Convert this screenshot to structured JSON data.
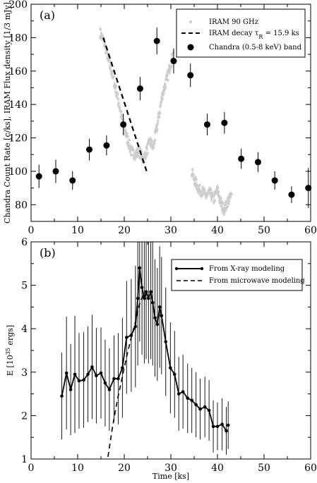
{
  "chart_data": [
    {
      "type": "scatter",
      "panel_label": "(a)",
      "xlabel": "",
      "ylabel": "Chandra Count Rate [c/ks], IRAM Flux density [1/3 mJy]",
      "xlim": [
        0,
        60
      ],
      "ylim": [
        70,
        200
      ],
      "x_ticks": [
        0,
        10,
        20,
        30,
        40,
        50,
        60
      ],
      "y_ticks": [
        80,
        100,
        120,
        140,
        160,
        180,
        200
      ],
      "grid": false,
      "legend_position": "top-right",
      "legend": [
        {
          "label": "IRAM 90 GHz",
          "marker": "small-gray-dot"
        },
        {
          "label": "IRAM decay τ",
          "sub": "R",
          "suffix": " = 15.9 ks",
          "marker": "dashed-line"
        },
        {
          "label": "Chandra (0.5-8 keV) band",
          "marker": "black-circle"
        }
      ],
      "series": [
        {
          "name": "Chandra (0.5-8 keV) band",
          "color": "#000000",
          "x": [
            1.7,
            5.3,
            8.9,
            12.5,
            16.2,
            19.8,
            23.4,
            27.0,
            30.6,
            34.2,
            37.8,
            41.5,
            45.1,
            48.7,
            52.3,
            55.9,
            59.5
          ],
          "y": [
            97,
            100,
            94.5,
            113,
            115.5,
            128,
            149.5,
            178,
            166,
            157.5,
            128,
            129,
            107.5,
            105.5,
            94.5,
            86,
            90
          ],
          "yerr": [
            7,
            7,
            5.5,
            6.5,
            6,
            6.5,
            7,
            8,
            7.5,
            7,
            6.5,
            6.5,
            6,
            6,
            5.5,
            5,
            12
          ]
        },
        {
          "name": "IRAM 90 GHz",
          "color": "#cccccc",
          "segments": [
            {
              "x_start": 14.8,
              "x_end": 27.0,
              "x": [
                14.8,
                15.6,
                16.5,
                17.5,
                18.6,
                19.6,
                20.6,
                21.5,
                22.4,
                23.3,
                24.0,
                24.8,
                25.5,
                26.2,
                27.0
              ],
              "y": [
                183,
                178,
                168,
                157,
                144,
                130,
                120,
                112,
                110,
                112,
                107,
                112,
                118,
                114,
                126
              ]
            },
            {
              "x_start": 27.0,
              "x_end": 30.5,
              "x": [
                27.0,
                27.6,
                28.2,
                28.8,
                29.4,
                30.0,
                30.5
              ],
              "y": [
                126,
                136,
                146,
                152,
                158,
                165,
                170
              ]
            },
            {
              "x_start": 34.5,
              "x_end": 43.0,
              "x": [
                34.5,
                35.2,
                36.0,
                36.8,
                37.6,
                38.4,
                39.2,
                40.0,
                40.8,
                41.5,
                42.2,
                43.0
              ],
              "y": [
                99,
                94,
                89,
                88,
                85,
                87,
                83,
                89,
                80,
                77,
                82,
                85
              ]
            }
          ]
        },
        {
          "name": "IRAM decay",
          "style": "dashed",
          "x": [
            15.5,
            24.8
          ],
          "y": [
            180,
            100
          ]
        }
      ]
    },
    {
      "type": "line",
      "panel_label": "(b)",
      "xlabel": "Time [ks]",
      "ylabel": "E [10",
      "ylabel_sup": "35",
      "ylabel_suffix": " ergs]",
      "xlim": [
        0,
        60
      ],
      "ylim": [
        1,
        6
      ],
      "x_ticks": [
        0,
        10,
        20,
        30,
        40,
        50,
        60
      ],
      "y_ticks": [
        1,
        2,
        3,
        4,
        5,
        6
      ],
      "grid": false,
      "legend_position": "top-right",
      "legend": [
        {
          "label": "From X-ray modeling",
          "marker": "solid-line-dots"
        },
        {
          "label": "From microwave modeling",
          "marker": "dashed-line"
        }
      ],
      "series": [
        {
          "name": "From X-ray modeling",
          "color": "#000000",
          "x": [
            6.6,
            7.6,
            8.5,
            9.4,
            10.3,
            11.3,
            12.2,
            13.1,
            14.0,
            15.0,
            15.9,
            16.8,
            17.8,
            18.7,
            19.6,
            20.5,
            21.5,
            22.4,
            22.9,
            23.3,
            23.8,
            24.3,
            24.7,
            25.2,
            25.7,
            26.1,
            26.6,
            27.1,
            27.6,
            28.0,
            28.9,
            29.9,
            30.8,
            31.7,
            32.6,
            33.6,
            34.5,
            35.4,
            36.3,
            37.3,
            38.2,
            39.1,
            40.0,
            41.0,
            41.9
          ],
          "y": [
            2.45,
            2.98,
            2.6,
            2.95,
            2.8,
            2.82,
            2.95,
            3.12,
            2.92,
            2.98,
            2.75,
            2.6,
            2.85,
            2.85,
            3.1,
            3.8,
            3.85,
            4.05,
            4.7,
            5.4,
            4.95,
            4.7,
            4.85,
            4.7,
            4.85,
            4.6,
            4.25,
            4.1,
            4.5,
            4.3,
            3.7,
            3.1,
            2.95,
            2.5,
            2.55,
            2.4,
            2.35,
            2.25,
            2.15,
            2.2,
            2.12,
            1.75,
            1.75,
            1.8,
            1.65
          ],
          "yerr": [
            1.0,
            1.3,
            1.05,
            1.35,
            1.1,
            1.1,
            1.1,
            1.2,
            1.1,
            1.05,
            1.0,
            0.95,
            1.0,
            1.05,
            1.15,
            1.3,
            1.3,
            1.4,
            1.55,
            1.7,
            1.55,
            1.5,
            1.55,
            1.5,
            1.55,
            1.45,
            1.35,
            1.3,
            1.4,
            1.35,
            1.25,
            1.05,
            1.0,
            0.85,
            0.85,
            0.8,
            0.75,
            0.75,
            0.7,
            0.7,
            0.7,
            0.6,
            0.55,
            0.6,
            0.55
          ]
        },
        {
          "name": "From microwave modeling",
          "style": "dashed",
          "color": "#000000",
          "x": [
            16.5,
            17.5,
            18.5,
            19.5,
            20.5,
            21.5,
            22.5,
            23.0,
            23.5,
            24.0,
            24.5
          ],
          "y": [
            1.05,
            1.75,
            2.35,
            2.85,
            3.35,
            3.8,
            4.2,
            4.45,
            4.65,
            4.75,
            4.85
          ]
        },
        {
          "name": "Last point",
          "x": [
            42.3
          ],
          "y": [
            1.78
          ],
          "yerr": [
            0.55
          ],
          "color": "#000000"
        }
      ]
    }
  ]
}
